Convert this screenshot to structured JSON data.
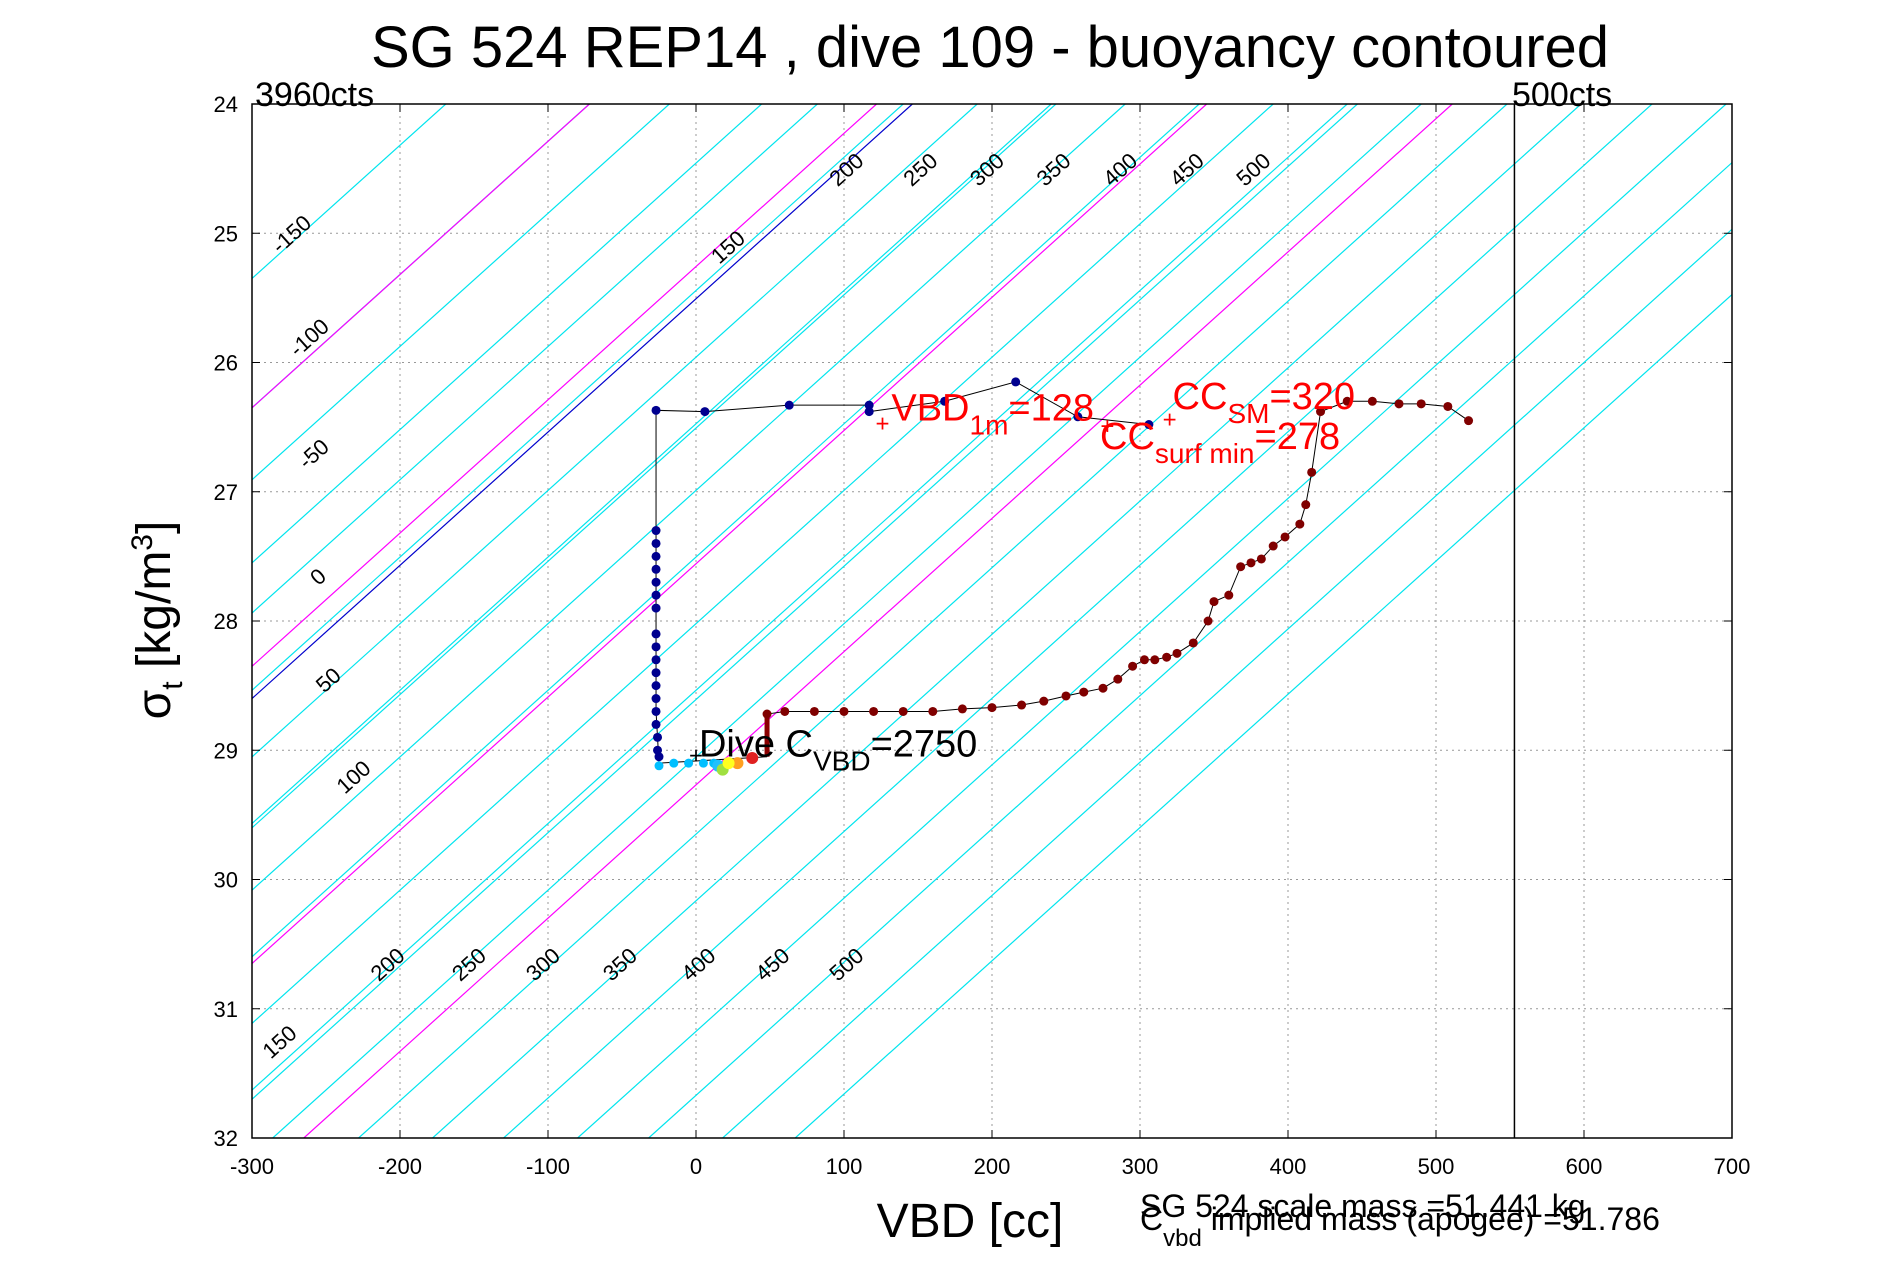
{
  "chart_data": {
    "type": "scatter",
    "title": "SG 524   REP14  , dive 109 - buoyancy contoured",
    "xlabel": "VBD [cc]",
    "ylabel": "σt [kg/m³]",
    "ylabel_main": "σ",
    "ylabel_sub": "t",
    "ylabel_rest": " [kg/m",
    "ylabel_sup": "3",
    "ylabel_close": "]",
    "xlim": [
      -300,
      700
    ],
    "ylim": [
      24,
      32
    ],
    "y_reversed": true,
    "x_ticks": [
      -300,
      -200,
      -100,
      0,
      100,
      200,
      300,
      400,
      500,
      600,
      700
    ],
    "y_ticks": [
      24,
      25,
      26,
      27,
      28,
      29,
      30,
      31,
      32
    ],
    "grid": true,
    "min_counts_label": "3960cts",
    "max_counts_label": "500cts",
    "max_counts_line_x": 553,
    "contours": {
      "slope_cc_per_sigma": -97,
      "upper_labels": [
        {
          "level": -150,
          "x": -270,
          "y": 25.05
        },
        {
          "level": -100,
          "x": -258,
          "y": 25.85
        },
        {
          "level": -50,
          "x": -255,
          "y": 26.75
        },
        {
          "level": 0,
          "x": -252,
          "y": 27.7
        },
        {
          "level": 50,
          "x": -245,
          "y": 28.5
        },
        {
          "level": 100,
          "x": -228,
          "y": 29.25
        },
        {
          "level": 150,
          "x": 25,
          "y": 25.15
        },
        {
          "level": 200,
          "x": 105,
          "y": 24.55
        },
        {
          "level": 250,
          "x": 155,
          "y": 24.55
        },
        {
          "level": 300,
          "x": 200,
          "y": 24.55
        },
        {
          "level": 350,
          "x": 245,
          "y": 24.55
        },
        {
          "level": 400,
          "x": 290,
          "y": 24.55
        },
        {
          "level": 450,
          "x": 335,
          "y": 24.55
        },
        {
          "level": 500,
          "x": 380,
          "y": 24.55
        }
      ],
      "lower_labels": [
        {
          "level": 150,
          "x": -278,
          "y": 31.3
        },
        {
          "level": 200,
          "x": -205,
          "y": 30.7
        },
        {
          "level": 250,
          "x": -150,
          "y": 30.7
        },
        {
          "level": 300,
          "x": -100,
          "y": 30.7
        },
        {
          "level": 350,
          "x": -48,
          "y": 30.7
        },
        {
          "level": 400,
          "x": 5,
          "y": 30.7
        },
        {
          "level": 450,
          "x": 55,
          "y": 30.7
        },
        {
          "level": 500,
          "x": 105,
          "y": 30.7
        }
      ],
      "cyan_lines": [
        [
          -300,
          25.35
        ],
        [
          -300,
          26.35
        ],
        [
          -300,
          27.55
        ],
        [
          -300,
          29.6
        ],
        [
          -300,
          31.7
        ],
        [
          -228,
          32
        ],
        [
          -178,
          32
        ],
        [
          -130,
          32
        ],
        [
          -80,
          32
        ],
        [
          -32,
          32
        ],
        [
          18,
          32
        ],
        [
          67,
          32
        ],
        [
          -18,
          24
        ],
        [
          82,
          24
        ],
        [
          140,
          24
        ],
        [
          190,
          24
        ],
        [
          240,
          24
        ],
        [
          290,
          24
        ],
        [
          340,
          24
        ],
        [
          390,
          24
        ],
        [
          440,
          24
        ],
        [
          490,
          24
        ]
      ],
      "blue_lines": [
        [
          -300,
          28.6
        ]
      ],
      "magenta_lines": [
        [
          -300,
          30.65
        ],
        [
          -265,
          32
        ],
        [
          -72,
          24
        ],
        [
          122,
          24
        ]
      ]
    },
    "series": [
      {
        "name": "",
        "color": "#00008f",
        "points": [
          [
            -27,
            26.37
          ],
          [
            6,
            26.38
          ],
          [
            63,
            26.33
          ],
          [
            117,
            26.33
          ],
          [
            117,
            26.38
          ],
          [
            168,
            26.3
          ],
          [
            216,
            26.15
          ],
          [
            258,
            26.42
          ],
          [
            306,
            26.48
          ],
          [
            -27,
            27.3
          ],
          [
            -27,
            27.4
          ],
          [
            -27,
            27.5
          ],
          [
            -27,
            27.6
          ],
          [
            -27,
            27.7
          ],
          [
            -27,
            27.8
          ],
          [
            -27,
            27.9
          ],
          [
            -27,
            28.1
          ],
          [
            -27,
            28.2
          ],
          [
            -27,
            28.3
          ],
          [
            -27,
            28.4
          ],
          [
            -27,
            28.5
          ],
          [
            -27,
            28.6
          ],
          [
            -27,
            28.7
          ],
          [
            -27,
            28.8
          ],
          [
            -26,
            28.9
          ],
          [
            -26,
            29.0
          ],
          [
            -25,
            29.05
          ]
        ]
      },
      {
        "name": "",
        "color": "#800000",
        "points": [
          [
            48,
            28.72
          ],
          [
            60,
            28.7
          ],
          [
            80,
            28.7
          ],
          [
            100,
            28.7
          ],
          [
            120,
            28.7
          ],
          [
            140,
            28.7
          ],
          [
            160,
            28.7
          ],
          [
            180,
            28.68
          ],
          [
            200,
            28.67
          ],
          [
            220,
            28.65
          ],
          [
            235,
            28.62
          ],
          [
            250,
            28.58
          ],
          [
            262,
            28.55
          ],
          [
            275,
            28.52
          ],
          [
            285,
            28.45
          ],
          [
            295,
            28.35
          ],
          [
            303,
            28.3
          ],
          [
            310,
            28.3
          ],
          [
            318,
            28.28
          ],
          [
            325,
            28.25
          ],
          [
            336,
            28.17
          ],
          [
            346,
            28.0
          ],
          [
            350,
            27.85
          ],
          [
            360,
            27.8
          ],
          [
            368,
            27.58
          ],
          [
            375,
            27.55
          ],
          [
            382,
            27.52
          ],
          [
            390,
            27.42
          ],
          [
            398,
            27.35
          ],
          [
            408,
            27.25
          ],
          [
            412,
            27.1
          ],
          [
            416,
            26.85
          ],
          [
            422,
            26.38
          ],
          [
            440,
            26.3
          ],
          [
            457,
            26.3
          ],
          [
            475,
            26.32
          ],
          [
            490,
            26.32
          ],
          [
            508,
            26.34
          ],
          [
            522,
            26.45
          ]
        ]
      },
      {
        "name": "",
        "color": "#00bfff",
        "points": [
          [
            -25,
            29.12
          ],
          [
            -15,
            29.1
          ],
          [
            -5,
            29.1
          ],
          [
            5,
            29.1
          ],
          [
            12,
            29.1
          ]
        ]
      }
    ],
    "annotations": [
      {
        "id": "vbd1m",
        "x": 126,
        "y": 26.48,
        "prefix": "VBD",
        "sub": "1m",
        "suffix": "=128",
        "tx": 132,
        "ty": 26.45,
        "color": "#ff0000"
      },
      {
        "id": "ccsm",
        "x": 320,
        "y": 26.45,
        "prefix": "CC",
        "sub": "SM",
        "suffix": "=320",
        "tx": 322,
        "ty": 26.36,
        "color": "#ff0000"
      },
      {
        "id": "ccsurf",
        "x": 278,
        "y": 26.5,
        "prefix": "CC",
        "sub": "surf min",
        "suffix": "=278",
        "tx": 273,
        "ty": 26.67,
        "color": "#ff0000"
      },
      {
        "id": "dive_c",
        "x": 0,
        "y": 29.05,
        "prefix": "Dive C",
        "sub": "VBD",
        "suffix": "=2750",
        "tx": 2,
        "ty": 29.05,
        "color": "#000000"
      }
    ],
    "footer_lines": [
      {
        "id": "scale_mass",
        "text": "SG 524 scale mass =51.441 kg"
      },
      {
        "id": "implied_mass",
        "prefix": "C",
        "sub": "vbd",
        "rest": " implied mass (apogee) =51.786"
      }
    ]
  }
}
